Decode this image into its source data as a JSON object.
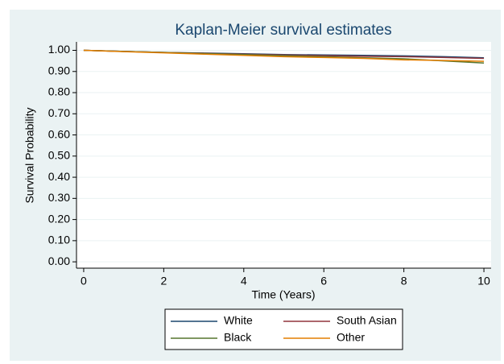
{
  "chart_data": {
    "type": "line",
    "title": "Kaplan-Meier survival estimates",
    "x_label": "Time (Years)",
    "y_label": "Survival Probability",
    "x": [
      0,
      1,
      2,
      3,
      4,
      5,
      6,
      7,
      8,
      9,
      10
    ],
    "series": [
      {
        "name": "White",
        "color": "#1a476f",
        "values": [
          1,
          0.995,
          0.99,
          0.987,
          0.984,
          0.98,
          0.978,
          0.976,
          0.974,
          0.97,
          0.965
        ]
      },
      {
        "name": "South Asian",
        "color": "#90353b",
        "values": [
          1,
          0.995,
          0.99,
          0.986,
          0.982,
          0.978,
          0.975,
          0.972,
          0.97,
          0.966,
          0.962
        ]
      },
      {
        "name": "Black",
        "color": "#55752f",
        "values": [
          1,
          0.995,
          0.99,
          0.985,
          0.98,
          0.975,
          0.97,
          0.965,
          0.96,
          0.95,
          0.94
        ]
      },
      {
        "name": "Other",
        "color": "#e37e00",
        "values": [
          1,
          0.994,
          0.988,
          0.982,
          0.976,
          0.97,
          0.966,
          0.962,
          0.955,
          0.952,
          0.948
        ]
      }
    ],
    "xlim": [
      -0.18,
      10.18
    ],
    "ylim": [
      -0.03,
      1.04
    ],
    "xticks": [
      0,
      2,
      4,
      6,
      8,
      10
    ],
    "yticks": [
      {
        "value": 0,
        "label": "0.00"
      },
      {
        "value": 0.1,
        "label": "0.10"
      },
      {
        "value": 0.2,
        "label": "0.20"
      },
      {
        "value": 0.3,
        "label": "0.30"
      },
      {
        "value": 0.4,
        "label": "0.40"
      },
      {
        "value": 0.5,
        "label": "0.50"
      },
      {
        "value": 0.6,
        "label": "0.60"
      },
      {
        "value": 0.7,
        "label": "0.70"
      },
      {
        "value": 0.8,
        "label": "0.80"
      },
      {
        "value": 0.9,
        "label": "0.90"
      },
      {
        "value": 1,
        "label": "1.00"
      }
    ],
    "grid": true,
    "legend": "bottom"
  }
}
